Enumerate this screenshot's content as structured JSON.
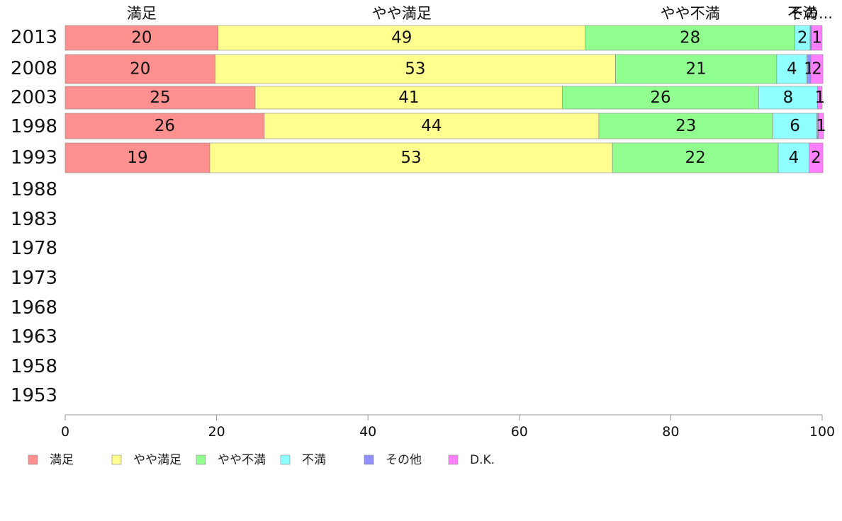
{
  "chart_data": {
    "type": "bar",
    "orientation": "horizontal",
    "stacked": true,
    "categories": [
      "2013",
      "2008",
      "2003",
      "1998",
      "1993",
      "1988",
      "1983",
      "1978",
      "1973",
      "1968",
      "1963",
      "1958",
      "1953"
    ],
    "top_labels": [
      "満足",
      "やや満足",
      "やや不満",
      "不満",
      "その..."
    ],
    "series": [
      {
        "name": "満足",
        "color": "#ff9090",
        "values": [
          20.2,
          19.8,
          25.1,
          26.3,
          19.1,
          null,
          null,
          null,
          null,
          null,
          null,
          null,
          null
        ],
        "labels": [
          "20",
          "20",
          "25",
          "26",
          "19",
          "",
          "",
          "",
          "",
          "",
          "",
          "",
          ""
        ]
      },
      {
        "name": "やや満足",
        "color": "#ffff90",
        "values": [
          48.5,
          52.9,
          40.6,
          44.2,
          53.2,
          null,
          null,
          null,
          null,
          null,
          null,
          null,
          null
        ],
        "labels": [
          "49",
          "53",
          "41",
          "44",
          "53",
          "",
          "",
          "",
          "",
          "",
          "",
          "",
          ""
        ]
      },
      {
        "name": "やや不満",
        "color": "#90ff90",
        "values": [
          27.7,
          21.3,
          25.9,
          23.0,
          21.9,
          null,
          null,
          null,
          null,
          null,
          null,
          null,
          null
        ],
        "labels": [
          "28",
          "21",
          "26",
          "23",
          "22",
          "",
          "",
          "",
          "",
          "",
          "",
          "",
          ""
        ]
      },
      {
        "name": "不満",
        "color": "#90ffff",
        "values": [
          2.0,
          4.0,
          7.8,
          5.8,
          4.1,
          null,
          null,
          null,
          null,
          null,
          null,
          null,
          null
        ],
        "labels": [
          "2",
          "4",
          "8",
          "6",
          "4",
          "",
          "",
          "",
          "",
          "",
          "",
          "",
          ""
        ]
      },
      {
        "name": "その他",
        "color": "#9090ff",
        "values": [
          0.2,
          0.5,
          0,
          0.2,
          0,
          null,
          null,
          null,
          null,
          null,
          null,
          null,
          null
        ],
        "labels": [
          "",
          "1",
          "",
          "",
          "",
          "",
          "",
          "",
          "",
          "",
          "",
          "",
          ""
        ]
      },
      {
        "name": "D.K.",
        "color": "#ff80ff",
        "values": [
          1.4,
          1.6,
          0.6,
          0.7,
          1.8,
          null,
          null,
          null,
          null,
          null,
          null,
          null,
          null
        ],
        "labels": [
          "1",
          "2",
          "1",
          "1",
          "2",
          "",
          "",
          "",
          "",
          "",
          "",
          "",
          ""
        ]
      }
    ],
    "xlim": [
      0,
      100
    ],
    "xticks": [
      "0",
      "20",
      "40",
      "60",
      "80",
      "100"
    ],
    "legend": [
      "満足",
      "やや満足",
      "やや不満",
      "不満",
      "その他",
      "D.K."
    ],
    "legend_position": "bottom-left",
    "grid": false
  }
}
